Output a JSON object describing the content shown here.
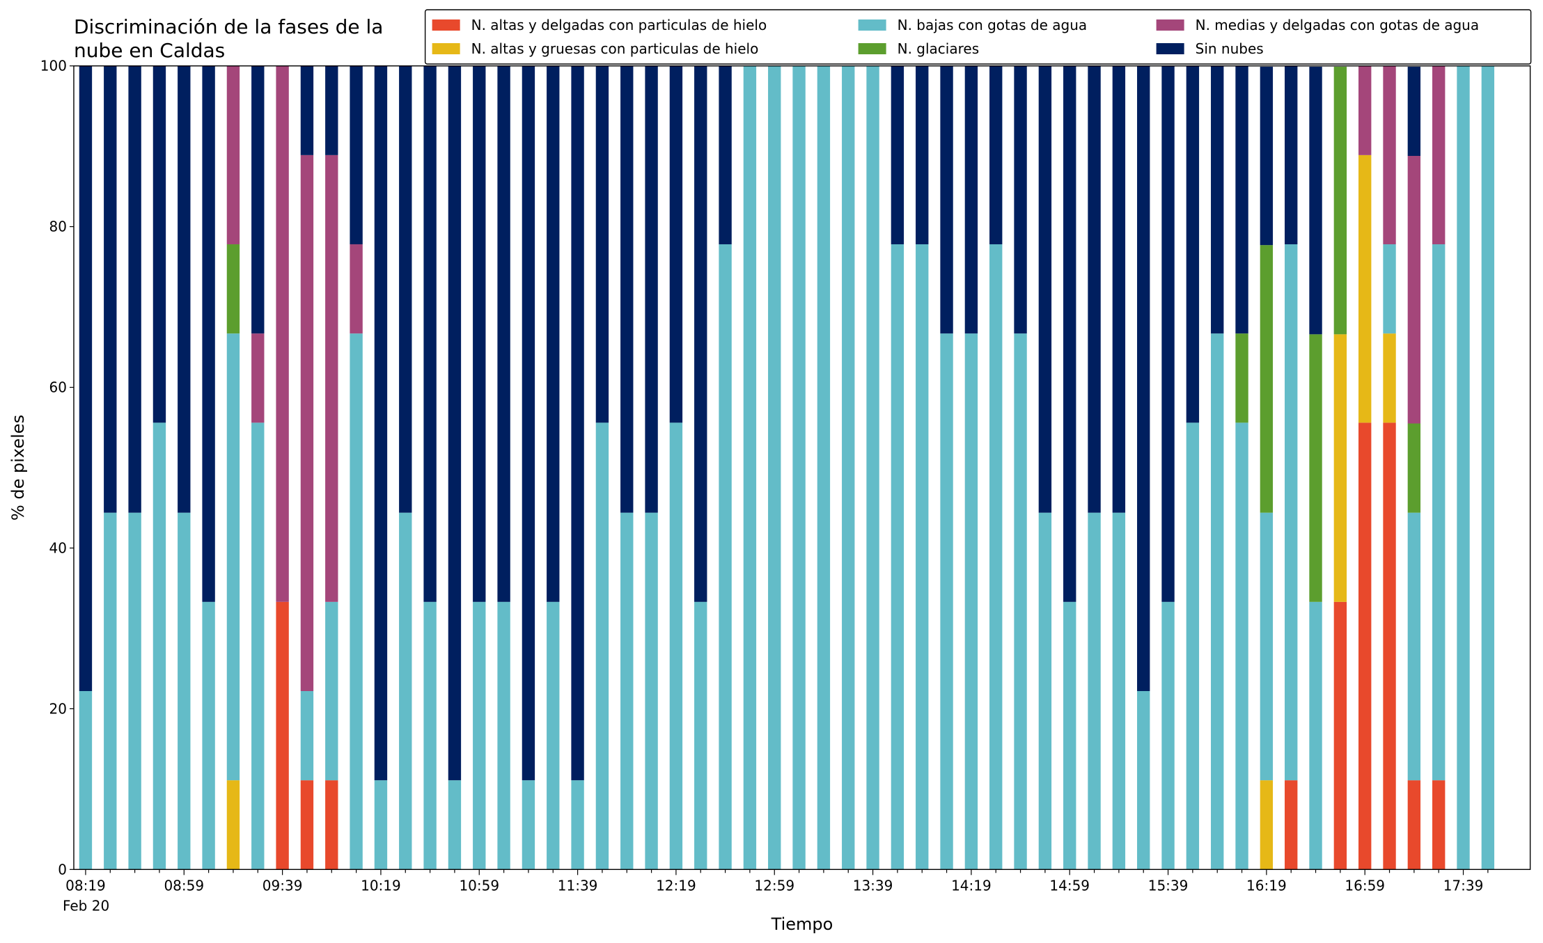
{
  "chart_data": {
    "type": "stacked_bar",
    "title": "Discriminación de la fases de la\nnube en Caldas",
    "xlabel": "Tiempo",
    "ylabel": "% de pixeles",
    "x_date_label": "Feb 20",
    "categories": [
      "08:19",
      null,
      null,
      null,
      "08:59",
      null,
      null,
      null,
      "09:39",
      null,
      null,
      null,
      "10:19",
      null,
      null,
      null,
      "10:59",
      null,
      null,
      null,
      "11:39",
      null,
      null,
      null,
      "12:19",
      null,
      null,
      null,
      "12:59",
      null,
      null,
      null,
      "13:39",
      null,
      null,
      null,
      "14:19",
      null,
      null,
      null,
      "14:59",
      null,
      null,
      null,
      "15:39",
      null,
      null,
      null,
      "16:19",
      null,
      null,
      null,
      "16:59",
      null,
      null,
      null,
      "17:39",
      null
    ],
    "ylim": [
      0,
      100
    ],
    "yticks": [
      0,
      20,
      40,
      60,
      80,
      100
    ],
    "legend": "upper right",
    "series": [
      {
        "name": "N. altas y delgadas con particulas de hielo",
        "color": "#e8492c",
        "values": [
          0,
          0,
          0,
          0,
          0,
          0,
          0,
          0,
          33.3,
          11.1,
          11.1,
          0,
          0,
          0,
          0,
          0,
          0,
          0,
          0,
          0,
          0,
          0,
          0,
          0,
          0,
          0,
          0,
          0,
          0,
          0,
          0,
          0,
          0,
          0,
          0,
          0,
          0,
          0,
          0,
          0,
          0,
          0,
          0,
          0,
          0,
          0,
          0,
          0,
          0,
          11.1,
          0,
          33.3,
          55.6,
          55.6,
          11.1,
          11.1,
          0,
          0
        ]
      },
      {
        "name": "N. altas y gruesas con particulas de hielo",
        "color": "#e6b817",
        "values": [
          0,
          0,
          0,
          0,
          0,
          0,
          11.1,
          0,
          0,
          0,
          0,
          0,
          0,
          0,
          0,
          0,
          0,
          0,
          0,
          0,
          0,
          0,
          0,
          0,
          0,
          0,
          0,
          0,
          0,
          0,
          0,
          0,
          0,
          0,
          0,
          0,
          0,
          0,
          0,
          0,
          0,
          0,
          0,
          0,
          0,
          0,
          0,
          0,
          11.1,
          0,
          0,
          33.3,
          33.3,
          11.1,
          0,
          0,
          0,
          0
        ]
      },
      {
        "name": "N. bajas con gotas de agua",
        "color": "#63bcc8",
        "values": [
          22.2,
          44.4,
          44.4,
          55.6,
          44.4,
          33.3,
          55.6,
          55.6,
          0,
          11.1,
          22.2,
          66.7,
          11.1,
          44.4,
          33.3,
          11.1,
          33.3,
          33.3,
          11.1,
          33.3,
          11.1,
          55.6,
          44.4,
          44.4,
          55.6,
          33.3,
          77.8,
          100,
          100,
          100,
          100,
          100,
          100,
          77.8,
          77.8,
          66.7,
          66.7,
          77.8,
          66.7,
          44.4,
          33.3,
          44.4,
          44.4,
          22.2,
          33.3,
          55.6,
          66.7,
          55.6,
          33.3,
          66.7,
          33.3,
          0,
          0,
          11.1,
          33.3,
          66.7,
          100,
          100
        ]
      },
      {
        "name": "N. glaciares",
        "color": "#5c9e2e",
        "values": [
          0,
          0,
          0,
          0,
          0,
          0,
          11.1,
          0,
          0,
          0,
          0,
          0,
          0,
          0,
          0,
          0,
          0,
          0,
          0,
          0,
          0,
          0,
          0,
          0,
          0,
          0,
          0,
          0,
          0,
          0,
          0,
          0,
          0,
          0,
          0,
          0,
          0,
          0,
          0,
          0,
          0,
          0,
          0,
          0,
          0,
          0,
          0,
          11.1,
          33.3,
          0,
          33.3,
          33.3,
          0,
          0,
          11.1,
          0,
          0,
          0
        ]
      },
      {
        "name": "N. medias y delgadas con gotas de agua",
        "color": "#a4467a",
        "values": [
          0,
          0,
          0,
          0,
          0,
          0,
          22.2,
          11.1,
          66.7,
          66.7,
          55.6,
          11.1,
          0,
          0,
          0,
          0,
          0,
          0,
          0,
          0,
          0,
          0,
          0,
          0,
          0,
          0,
          0,
          0,
          0,
          0,
          0,
          0,
          0,
          0,
          0,
          0,
          0,
          0,
          0,
          0,
          0,
          0,
          0,
          0,
          0,
          0,
          0,
          0,
          0,
          0,
          0,
          0,
          11.1,
          22.2,
          33.3,
          22.2,
          0,
          0
        ]
      },
      {
        "name": "Sin nubes",
        "color": "#001f5f",
        "values": [
          77.8,
          55.6,
          55.6,
          44.4,
          55.6,
          66.7,
          0,
          33.3,
          0,
          11.1,
          11.1,
          22.2,
          88.9,
          55.6,
          66.7,
          88.9,
          66.7,
          66.7,
          88.9,
          66.7,
          88.9,
          44.4,
          55.6,
          55.6,
          44.4,
          66.7,
          22.2,
          0,
          0,
          0,
          0,
          0,
          0,
          22.2,
          22.2,
          33.3,
          33.3,
          22.2,
          33.3,
          55.6,
          66.7,
          55.6,
          55.6,
          77.8,
          66.7,
          44.4,
          33.3,
          33.3,
          22.2,
          22.2,
          33.3,
          0,
          0,
          0,
          11.1,
          0,
          0,
          0
        ]
      }
    ]
  }
}
